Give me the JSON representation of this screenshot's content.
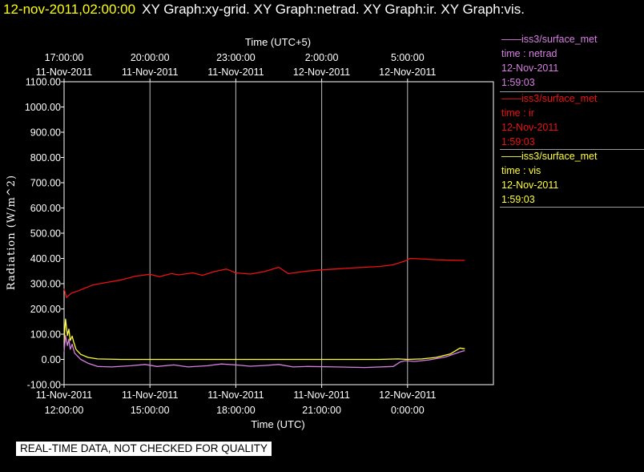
{
  "header": {
    "timestamp": "12-nov-2011,02:00:00",
    "titles": "XY Graph:xy-grid.  XY Graph:netrad.  XY Graph:ir.  XY Graph:vis."
  },
  "colors": {
    "background": "#000000",
    "netrad": "#d77fe3",
    "ir": "#ee1111",
    "vis": "#ffff33",
    "grid": "#bdbdbd",
    "axis_text": "#ffffff"
  },
  "legend": [
    {
      "series": "netrad",
      "source": "——iss3/surface_met",
      "field": "time : netrad",
      "date": "12-Nov-2011",
      "time": "1:59:03",
      "color": "#d77fe3"
    },
    {
      "series": "ir",
      "source": "——iss3/surface_met",
      "field": "time : ir",
      "date": "12-Nov-2011",
      "time": "1:59:03",
      "color": "#ee1111"
    },
    {
      "series": "vis",
      "source": "——iss3/surface_met",
      "field": "time : vis",
      "date": "12-Nov-2011",
      "time": "1:59:03",
      "color": "#ffff33"
    }
  ],
  "disclaimer": "REAL-TIME DATA, NOT CHECKED FOR QUALITY",
  "chart_data": {
    "type": "line",
    "ylabel": "Radiation (W/m^2)",
    "xlabel": "Time (UTC)",
    "x2label": "Time (UTC+5)",
    "ylim": [
      -100,
      1100
    ],
    "yticks": [
      "1100.00",
      "1000.00",
      "900.00",
      "800.00",
      "700.00",
      "600.00",
      "500.00",
      "400.00",
      "300.00",
      "200.00",
      "100.00",
      "0.00",
      "-100.00"
    ],
    "xlim": [
      "2011-11-11 12:00",
      "2011-11-12 03:00"
    ],
    "xticks": [
      {
        "x": "2011-11-11 12:00",
        "date": "11-Nov-2011",
        "time": "12:00:00"
      },
      {
        "x": "2011-11-11 15:00",
        "date": "11-Nov-2011",
        "time": "15:00:00"
      },
      {
        "x": "2011-11-11 18:00",
        "date": "11-Nov-2011",
        "time": "18:00:00"
      },
      {
        "x": "2011-11-11 21:00",
        "date": "11-Nov-2011",
        "time": "21:00:00"
      },
      {
        "x": "2011-11-12 00:00",
        "date": "12-Nov-2011",
        "time": "0:00:00"
      }
    ],
    "x2ticks": [
      {
        "x": "2011-11-11 12:00",
        "date": "11-Nov-2011",
        "time": "17:00:00"
      },
      {
        "x": "2011-11-11 15:00",
        "date": "11-Nov-2011",
        "time": "20:00:00"
      },
      {
        "x": "2011-11-11 18:00",
        "date": "11-Nov-2011",
        "time": "23:00:00"
      },
      {
        "x": "2011-11-11 21:00",
        "date": "12-Nov-2011",
        "time": "2:00:00"
      },
      {
        "x": "2011-11-12 00:00",
        "date": "12-Nov-2011",
        "time": "5:00:00"
      }
    ],
    "grid": "vertical",
    "series": [
      {
        "name": "ir",
        "color": "#ee1111",
        "points": [
          [
            "2011-11-11 12:00",
            280
          ],
          [
            "2011-11-11 12:05",
            245
          ],
          [
            "2011-11-11 12:15",
            262
          ],
          [
            "2011-11-11 12:30",
            272
          ],
          [
            "2011-11-11 13:00",
            295
          ],
          [
            "2011-11-11 13:30",
            305
          ],
          [
            "2011-11-11 14:00",
            315
          ],
          [
            "2011-11-11 14:30",
            330
          ],
          [
            "2011-11-11 15:00",
            337
          ],
          [
            "2011-11-11 15:20",
            328
          ],
          [
            "2011-11-11 15:45",
            340
          ],
          [
            "2011-11-11 16:00",
            335
          ],
          [
            "2011-11-11 16:30",
            343
          ],
          [
            "2011-11-11 16:50",
            333
          ],
          [
            "2011-11-11 17:15",
            348
          ],
          [
            "2011-11-11 17:40",
            358
          ],
          [
            "2011-11-11 18:00",
            343
          ],
          [
            "2011-11-11 18:30",
            338
          ],
          [
            "2011-11-11 19:00",
            348
          ],
          [
            "2011-11-11 19:30",
            365
          ],
          [
            "2011-11-11 19:50",
            340
          ],
          [
            "2011-11-11 20:30",
            350
          ],
          [
            "2011-11-11 21:00",
            355
          ],
          [
            "2011-11-11 21:30",
            358
          ],
          [
            "2011-11-11 22:00",
            362
          ],
          [
            "2011-11-11 22:30",
            365
          ],
          [
            "2011-11-11 23:00",
            368
          ],
          [
            "2011-11-11 23:30",
            375
          ],
          [
            "2011-11-11 23:55",
            390
          ],
          [
            "2011-11-12 00:05",
            400
          ],
          [
            "2011-11-12 00:30",
            398
          ],
          [
            "2011-11-12 01:00",
            395
          ],
          [
            "2011-11-12 01:30",
            393
          ],
          [
            "2011-11-12 02:00",
            392
          ]
        ]
      },
      {
        "name": "vis",
        "color": "#ffff33",
        "points": [
          [
            "2011-11-11 12:00",
            70
          ],
          [
            "2011-11-11 12:03",
            160
          ],
          [
            "2011-11-11 12:07",
            95
          ],
          [
            "2011-11-11 12:10",
            120
          ],
          [
            "2011-11-11 12:13",
            75
          ],
          [
            "2011-11-11 12:17",
            92
          ],
          [
            "2011-11-11 12:20",
            70
          ],
          [
            "2011-11-11 12:25",
            40
          ],
          [
            "2011-11-11 12:35",
            20
          ],
          [
            "2011-11-11 12:50",
            8
          ],
          [
            "2011-11-11 13:10",
            2
          ],
          [
            "2011-11-11 14:00",
            0
          ],
          [
            "2011-11-11 16:00",
            0
          ],
          [
            "2011-11-11 18:00",
            0
          ],
          [
            "2011-11-11 20:00",
            0
          ],
          [
            "2011-11-11 22:00",
            0
          ],
          [
            "2011-11-11 23:00",
            0
          ],
          [
            "2011-11-11 23:40",
            2
          ],
          [
            "2011-11-12 00:00",
            0
          ],
          [
            "2011-11-12 00:30",
            2
          ],
          [
            "2011-11-12 01:00",
            8
          ],
          [
            "2011-11-12 01:30",
            22
          ],
          [
            "2011-11-12 01:50",
            45
          ],
          [
            "2011-11-12 02:00",
            42
          ]
        ]
      },
      {
        "name": "netrad",
        "color": "#d77fe3",
        "points": [
          [
            "2011-11-11 12:00",
            30
          ],
          [
            "2011-11-11 12:03",
            95
          ],
          [
            "2011-11-11 12:07",
            55
          ],
          [
            "2011-11-11 12:10",
            80
          ],
          [
            "2011-11-11 12:13",
            40
          ],
          [
            "2011-11-11 12:17",
            60
          ],
          [
            "2011-11-11 12:22",
            25
          ],
          [
            "2011-11-11 12:35",
            0
          ],
          [
            "2011-11-11 12:50",
            -15
          ],
          [
            "2011-11-11 13:10",
            -28
          ],
          [
            "2011-11-11 13:40",
            -30
          ],
          [
            "2011-11-11 14:20",
            -25
          ],
          [
            "2011-11-11 14:50",
            -20
          ],
          [
            "2011-11-11 15:15",
            -28
          ],
          [
            "2011-11-11 15:50",
            -22
          ],
          [
            "2011-11-11 16:20",
            -30
          ],
          [
            "2011-11-11 17:00",
            -25
          ],
          [
            "2011-11-11 17:30",
            -18
          ],
          [
            "2011-11-11 18:00",
            -22
          ],
          [
            "2011-11-11 18:30",
            -27
          ],
          [
            "2011-11-11 19:00",
            -24
          ],
          [
            "2011-11-11 19:30",
            -20
          ],
          [
            "2011-11-11 20:00",
            -30
          ],
          [
            "2011-11-11 20:30",
            -28
          ],
          [
            "2011-11-11 21:30",
            -30
          ],
          [
            "2011-11-11 22:30",
            -32
          ],
          [
            "2011-11-11 23:30",
            -28
          ],
          [
            "2011-11-11 23:45",
            -10
          ],
          [
            "2011-11-11 23:55",
            -5
          ],
          [
            "2011-11-12 00:15",
            -8
          ],
          [
            "2011-11-12 00:45",
            -2
          ],
          [
            "2011-11-12 01:20",
            10
          ],
          [
            "2011-11-12 01:50",
            30
          ],
          [
            "2011-11-12 02:00",
            35
          ]
        ]
      }
    ]
  }
}
